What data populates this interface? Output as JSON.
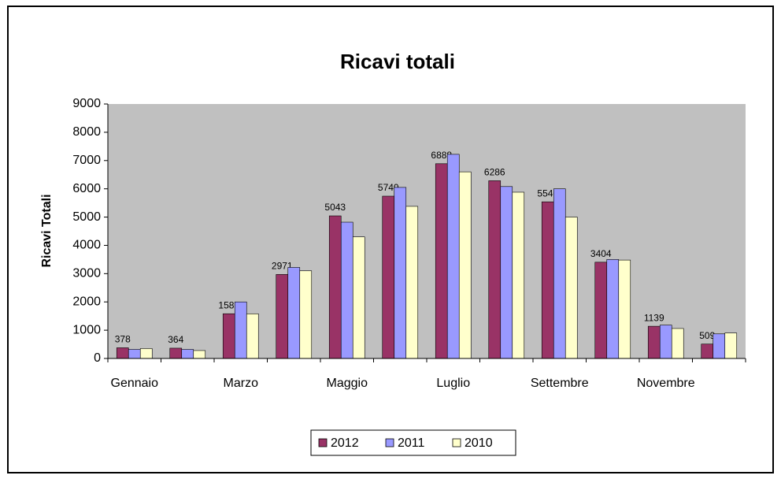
{
  "chart_data": {
    "type": "bar",
    "title": "Ricavi totali",
    "y_label": "Ricavi Totali",
    "categories": [
      "Gennaio",
      null,
      "Marzo",
      null,
      "Maggio",
      null,
      "Luglio",
      null,
      "Settembre",
      null,
      "Novembre",
      null
    ],
    "series": [
      {
        "name": "2012",
        "color": "#993366",
        "show_labels": true,
        "values": [
          378,
          364,
          1582,
          2971,
          5043,
          5740,
          6888,
          6286,
          5540,
          3404,
          1139,
          509
        ]
      },
      {
        "name": "2011",
        "color": "#9999ff",
        "show_labels": false,
        "values": [
          320,
          320,
          2000,
          3220,
          4820,
          6050,
          7220,
          6080,
          6000,
          3500,
          1180,
          870
        ]
      },
      {
        "name": "2010",
        "color": "#ffffcc",
        "show_labels": false,
        "values": [
          350,
          280,
          1580,
          3100,
          4300,
          5380,
          6600,
          5880,
          5000,
          3480,
          1060,
          900
        ]
      }
    ],
    "ylim": [
      0,
      9000
    ],
    "yticks": [
      0,
      1000,
      2000,
      3000,
      4000,
      5000,
      6000,
      7000,
      8000,
      9000
    ],
    "plot_background": "#c0c0c0",
    "legend": "bottom"
  }
}
